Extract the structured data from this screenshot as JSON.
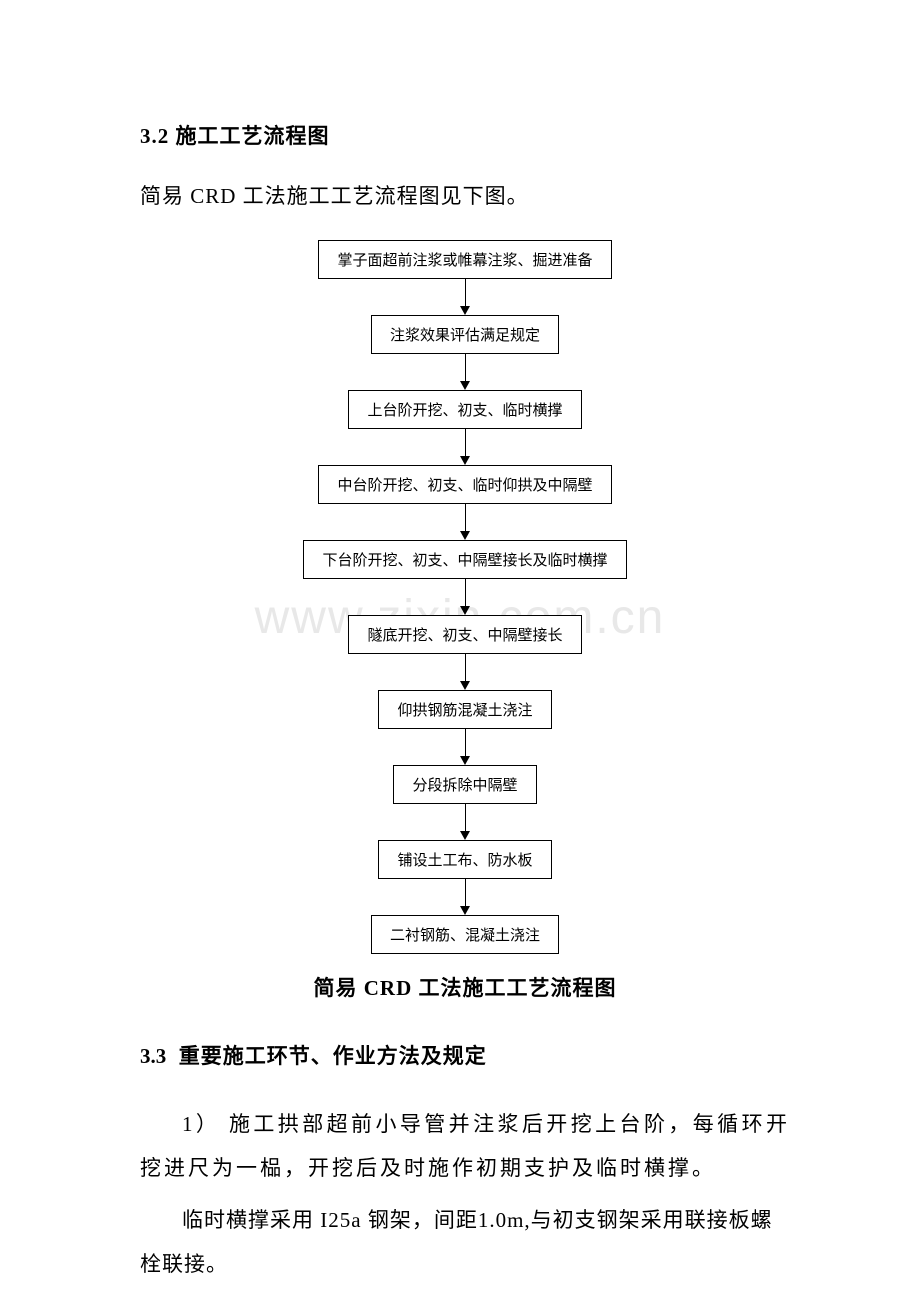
{
  "section32": {
    "heading": "3.2 施工工艺流程图",
    "intro": "简易 CRD 工法施工工艺流程图见下图。"
  },
  "flowchart": {
    "type": "flowchart",
    "background_color": "#ffffff",
    "box_border_color": "#000000",
    "box_font_size": 15,
    "arrow_color": "#000000",
    "arrow_line_height": 28,
    "nodes": [
      "掌子面超前注浆或帷幕注浆、掘进准备",
      "注浆效果评估满足规定",
      "上台阶开挖、初支、临时横撑",
      "中台阶开挖、初支、临时仰拱及中隔壁",
      "下台阶开挖、初支、中隔壁接长及临时横撑",
      "隧底开挖、初支、中隔壁接长",
      "仰拱钢筋混凝土浇注",
      "分段拆除中隔壁",
      "铺设土工布、防水板",
      "二衬钢筋、混凝土浇注"
    ],
    "caption": "简易 CRD 工法施工工艺流程图"
  },
  "watermark": {
    "text": "www.zixin.com.cn",
    "color": "#e8e8e8",
    "font_size": 48
  },
  "section33": {
    "heading_num": "3.3",
    "heading_text": "重要施工环节、作业方法及规定",
    "para1": "1） 施工拱部超前小导管并注浆后开挖上台阶，每循环开挖进尺为一榀，开挖后及时施作初期支护及临时横撑。",
    "para2": "临时横撑采用 I25a 钢架，间距1.0m,与初支钢架采用联接板螺栓联接。"
  }
}
